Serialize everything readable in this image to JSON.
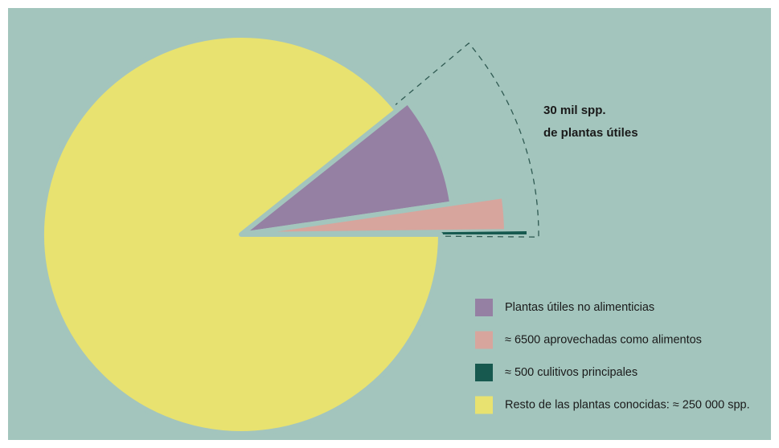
{
  "chart_data": {
    "type": "pie",
    "categories": [
      "Plantas útiles no alimenticias",
      "≈ 6500 aprovechadas como alimentos",
      "≈ 500 culitivos principales",
      "Resto de las plantas conocidas: ≈ 250 000 spp."
    ],
    "values": [
      23500,
      6000,
      500,
      250000
    ],
    "colors": [
      "#9580a3",
      "#d7a59d",
      "#17594f",
      "#e8e270"
    ],
    "annotation": [
      "30 mil spp.",
      "de plantas útiles"
    ],
    "background": "#a3c5bd"
  }
}
